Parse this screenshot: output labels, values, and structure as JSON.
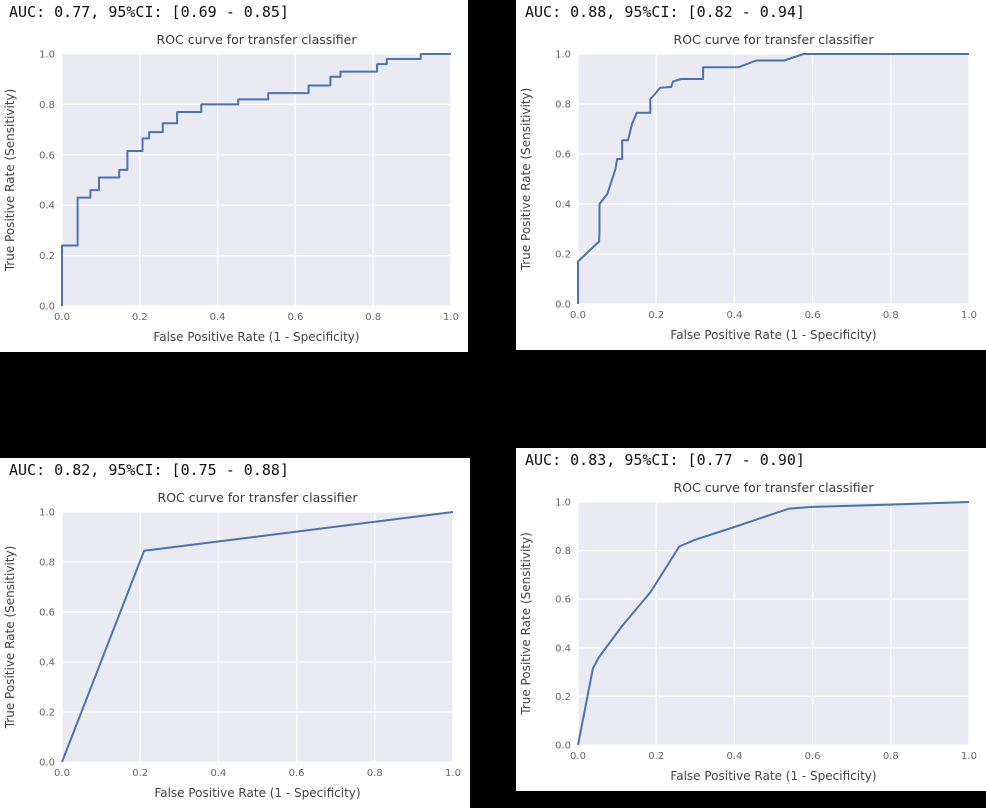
{
  "styles": {
    "canvas_bg": "#000000",
    "panel_bg": "#ffffff",
    "plot_bg": "#eaeaf2",
    "grid_color": "#ffffff",
    "line_color": "#4c72b0",
    "tick_color": "#666666",
    "label_color": "#444444",
    "title_color": "#3a3a3a"
  },
  "panels": [
    {
      "name": "top-left",
      "auc_label": "AUC: 0.77, 95%CI: [0.69 - 0.85]"
    },
    {
      "name": "top-right",
      "auc_label": "AUC: 0.88, 95%CI: [0.82 - 0.94]"
    },
    {
      "name": "bottom-left",
      "auc_label": "AUC: 0.82, 95%CI: [0.75 - 0.88]"
    },
    {
      "name": "bottom-right",
      "auc_label": "AUC: 0.83, 95%CI: [0.77 - 0.90]"
    }
  ],
  "chart_data": [
    {
      "type": "line",
      "title": "ROC curve for transfer classifier",
      "xlabel": "False Positive Rate (1 - Specificity)",
      "ylabel": "True Positive Rate (Sensitivity)",
      "xlim": [
        0,
        1
      ],
      "ylim": [
        0,
        1
      ],
      "xticks": [
        0.0,
        0.2,
        0.4,
        0.6,
        0.8,
        1.0
      ],
      "yticks": [
        0.0,
        0.2,
        0.4,
        0.6,
        0.8,
        1.0
      ],
      "xtick_labels": [
        "0.0",
        "0.2",
        "0.4",
        "0.6",
        "0.8",
        "1.0"
      ],
      "ytick_labels": [
        "0.0",
        "0.2",
        "0.4",
        "0.6",
        "0.8",
        "1.0"
      ],
      "grid": true,
      "legend": "none",
      "auc": 0.77,
      "ci_low": 0.69,
      "ci_high": 0.85,
      "points": [
        [
          0,
          0
        ],
        [
          0,
          0.24
        ],
        [
          0.04,
          0.24
        ],
        [
          0.04,
          0.43
        ],
        [
          0.073,
          0.43
        ],
        [
          0.073,
          0.46
        ],
        [
          0.095,
          0.46
        ],
        [
          0.095,
          0.51
        ],
        [
          0.147,
          0.51
        ],
        [
          0.147,
          0.54
        ],
        [
          0.168,
          0.54
        ],
        [
          0.168,
          0.615
        ],
        [
          0.207,
          0.615
        ],
        [
          0.207,
          0.665
        ],
        [
          0.224,
          0.665
        ],
        [
          0.224,
          0.69
        ],
        [
          0.259,
          0.69
        ],
        [
          0.259,
          0.725
        ],
        [
          0.296,
          0.725
        ],
        [
          0.296,
          0.77
        ],
        [
          0.358,
          0.77
        ],
        [
          0.358,
          0.8
        ],
        [
          0.453,
          0.8
        ],
        [
          0.453,
          0.82
        ],
        [
          0.53,
          0.82
        ],
        [
          0.53,
          0.845
        ],
        [
          0.634,
          0.845
        ],
        [
          0.634,
          0.875
        ],
        [
          0.69,
          0.875
        ],
        [
          0.69,
          0.91
        ],
        [
          0.716,
          0.91
        ],
        [
          0.716,
          0.93
        ],
        [
          0.81,
          0.93
        ],
        [
          0.81,
          0.96
        ],
        [
          0.835,
          0.96
        ],
        [
          0.835,
          0.98
        ],
        [
          0.922,
          0.98
        ],
        [
          0.922,
          1.0
        ],
        [
          1,
          1
        ]
      ]
    },
    {
      "type": "line",
      "title": "ROC curve for transfer classifier",
      "xlabel": "False Positive Rate (1 - Specificity)",
      "ylabel": "True Positive Rate (Sensitivity)",
      "xlim": [
        0,
        1
      ],
      "ylim": [
        0,
        1
      ],
      "xticks": [
        0.0,
        0.2,
        0.4,
        0.6,
        0.8,
        1.0
      ],
      "yticks": [
        0.0,
        0.2,
        0.4,
        0.6,
        0.8,
        1.0
      ],
      "xtick_labels": [
        "0.0",
        "0.2",
        "0.4",
        "0.6",
        "0.8",
        "1.0"
      ],
      "ytick_labels": [
        "0.0",
        "0.2",
        "0.4",
        "0.6",
        "0.8",
        "1.0"
      ],
      "grid": true,
      "legend": "none",
      "auc": 0.88,
      "ci_low": 0.82,
      "ci_high": 0.94,
      "points": [
        [
          0,
          0
        ],
        [
          0,
          0.17
        ],
        [
          0.02,
          0.2
        ],
        [
          0.054,
          0.25
        ],
        [
          0.055,
          0.29
        ],
        [
          0.055,
          0.4
        ],
        [
          0.075,
          0.44
        ],
        [
          0.096,
          0.54
        ],
        [
          0.1,
          0.58
        ],
        [
          0.113,
          0.58
        ],
        [
          0.113,
          0.655
        ],
        [
          0.128,
          0.655
        ],
        [
          0.138,
          0.72
        ],
        [
          0.15,
          0.765
        ],
        [
          0.185,
          0.765
        ],
        [
          0.185,
          0.82
        ],
        [
          0.197,
          0.84
        ],
        [
          0.21,
          0.865
        ],
        [
          0.238,
          0.868
        ],
        [
          0.243,
          0.89
        ],
        [
          0.264,
          0.9
        ],
        [
          0.32,
          0.9
        ],
        [
          0.32,
          0.947
        ],
        [
          0.41,
          0.947
        ],
        [
          0.456,
          0.974
        ],
        [
          0.527,
          0.974
        ],
        [
          0.577,
          1.0
        ],
        [
          1,
          1
        ]
      ]
    },
    {
      "type": "line",
      "title": "ROC curve for transfer classifier",
      "xlabel": "False Positive Rate (1 - Specificity)",
      "ylabel": "True Positive Rate (Sensitivity)",
      "xlim": [
        0,
        1
      ],
      "ylim": [
        0,
        1
      ],
      "xticks": [
        0.0,
        0.2,
        0.4,
        0.6,
        0.8,
        1.0
      ],
      "yticks": [
        0.0,
        0.2,
        0.4,
        0.6,
        0.8,
        1.0
      ],
      "xtick_labels": [
        "0.0",
        "0.2",
        "0.4",
        "0.6",
        "0.8",
        "1.0"
      ],
      "ytick_labels": [
        "0.0",
        "0.2",
        "0.4",
        "0.6",
        "0.8",
        "1.0"
      ],
      "grid": true,
      "legend": "none",
      "auc": 0.82,
      "ci_low": 0.75,
      "ci_high": 0.88,
      "points": [
        [
          0,
          0
        ],
        [
          0.21,
          0.845
        ],
        [
          1,
          1
        ]
      ]
    },
    {
      "type": "line",
      "title": "ROC curve for transfer classifier",
      "xlabel": "False Positive Rate (1 - Specificity)",
      "ylabel": "True Positive Rate (Sensitivity)",
      "xlim": [
        0,
        1
      ],
      "ylim": [
        0,
        1
      ],
      "xticks": [
        0.0,
        0.2,
        0.4,
        0.6,
        0.8,
        1.0
      ],
      "yticks": [
        0.0,
        0.2,
        0.4,
        0.6,
        0.8,
        1.0
      ],
      "xtick_labels": [
        "0.0",
        "0.2",
        "0.4",
        "0.6",
        "0.8",
        "1.0"
      ],
      "ytick_labels": [
        "0.0",
        "0.2",
        "0.4",
        "0.6",
        "0.8",
        "1.0"
      ],
      "grid": true,
      "legend": "none",
      "auc": 0.83,
      "ci_low": 0.77,
      "ci_high": 0.9,
      "points": [
        [
          0,
          0
        ],
        [
          0.038,
          0.315
        ],
        [
          0.053,
          0.36
        ],
        [
          0.113,
          0.49
        ],
        [
          0.186,
          0.63
        ],
        [
          0.259,
          0.817
        ],
        [
          0.3,
          0.845
        ],
        [
          0.4,
          0.897
        ],
        [
          0.54,
          0.973
        ],
        [
          0.6,
          0.98
        ],
        [
          0.815,
          0.99
        ],
        [
          1,
          1
        ]
      ]
    }
  ]
}
